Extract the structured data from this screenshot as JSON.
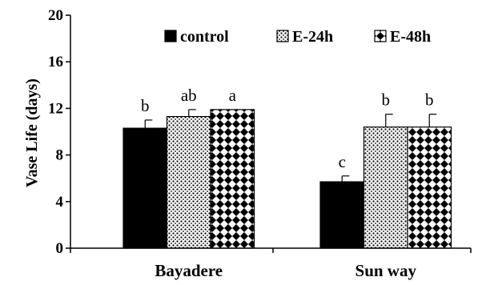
{
  "chart_data": {
    "type": "bar",
    "ylabel": "Vase Life (days)",
    "xlabel": "",
    "ylim": [
      0,
      20
    ],
    "yticks": [
      0,
      4,
      8,
      12,
      16,
      20
    ],
    "categories": [
      "Bayadere",
      "Sun way"
    ],
    "legend_position": "top-right",
    "series": [
      {
        "name": "control",
        "pattern": "solid-black",
        "values": [
          10.3,
          5.7
        ],
        "errors": [
          0.7,
          0.5
        ],
        "labels": [
          "b",
          "c"
        ]
      },
      {
        "name": "E-24h",
        "pattern": "dots",
        "values": [
          11.3,
          10.4
        ],
        "errors": [
          0.6,
          1.1
        ],
        "labels": [
          "ab",
          "b"
        ]
      },
      {
        "name": "E-48h",
        "pattern": "checker",
        "values": [
          11.9,
          10.4
        ],
        "errors": [
          0.0,
          1.1
        ],
        "labels": [
          "a",
          "b"
        ]
      }
    ]
  }
}
